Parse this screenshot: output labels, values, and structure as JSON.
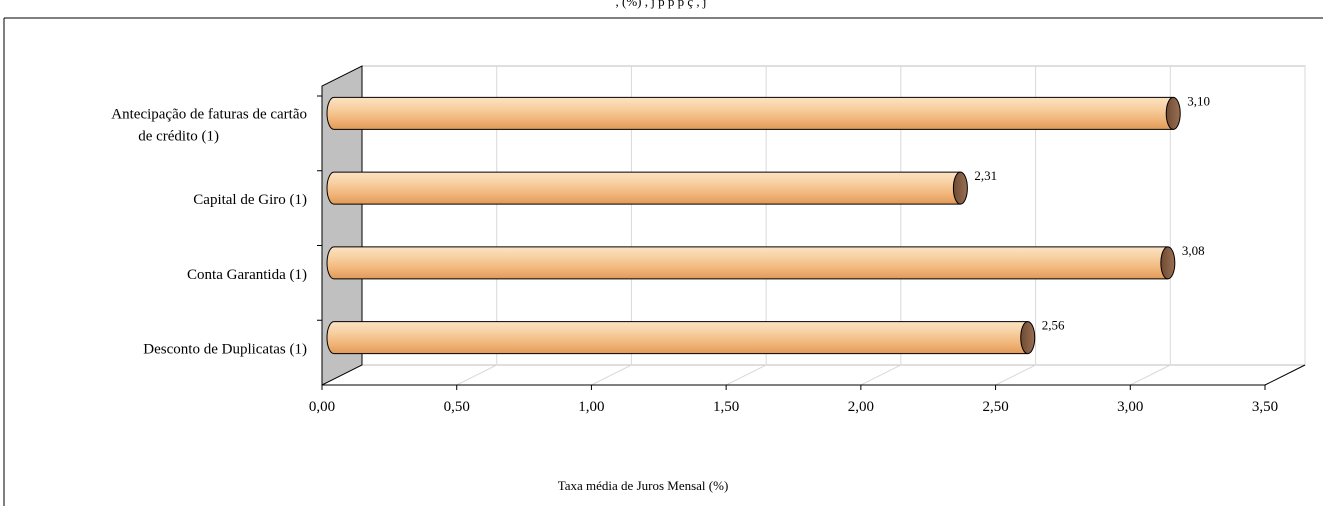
{
  "header": {
    "cropped_title": ", (%) , j p p p ç , j"
  },
  "chart_data": {
    "type": "bar",
    "orientation": "horizontal",
    "style": "3d-cylinder",
    "categories": [
      [
        "Antecipação de faturas de cartão",
        "de crédito (1)"
      ],
      [
        "Capital de Giro (1)"
      ],
      [
        "Conta Garantida (1)"
      ],
      [
        "Desconto de Duplicatas (1)"
      ]
    ],
    "values": [
      3.1,
      2.31,
      3.08,
      2.56
    ],
    "value_labels": [
      "3,10",
      "2,31",
      "3,08",
      "2,56"
    ],
    "xlim": [
      0,
      3.5
    ],
    "xticks": [
      "0,00",
      "0,50",
      "1,00",
      "1,50",
      "2,00",
      "2,50",
      "3,00",
      "3,50"
    ],
    "xlabel": "Taxa média de Juros Mensal (%)",
    "ylabel": "",
    "grid": true,
    "legend": "none",
    "colors": {
      "bar_light": "#fce4c6",
      "bar_mid": "#f5c08c",
      "bar_dark": "#d99a5e",
      "bar_cap": "#8b6347",
      "side_wall": "#c0c0c0",
      "grid": "#d9d9d9",
      "frame": "#000000"
    }
  }
}
